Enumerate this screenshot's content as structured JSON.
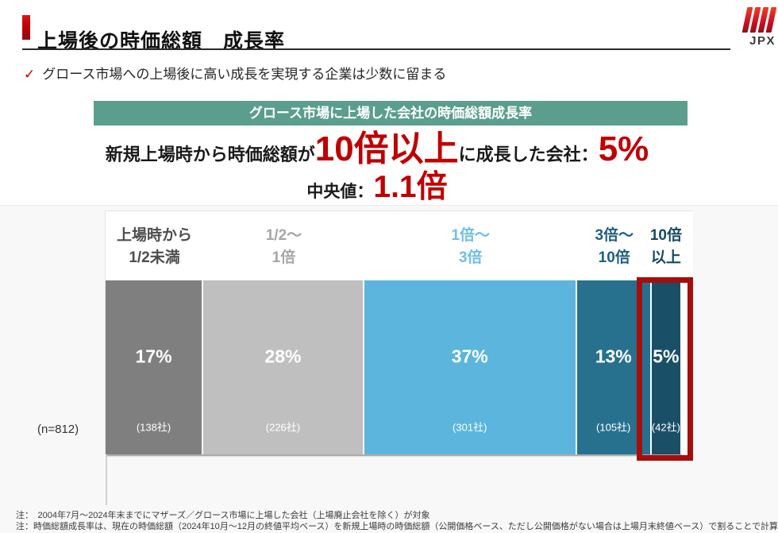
{
  "header": {
    "title": "上場後の時価総額　成長率",
    "logo_text": "JPX",
    "bullet": "グロース市場への上場後に高い成長を実現する企業は少数に留まる"
  },
  "summary": {
    "box_title": "グロース市場に上場した会社の時価総額成長率",
    "box_color": "#5B9E8D",
    "accent_red": "#C00000",
    "stmt_prefix": "新規上場時から時価総額が",
    "stmt_highlight": "10倍以上",
    "stmt_middle": "に成長した会社：",
    "stmt_value": "5%",
    "median_label": "中央値：",
    "median_value": "1.1倍"
  },
  "chart_data": {
    "type": "bar",
    "orientation": "horizontal-stacked",
    "title": "グロース市場に上場した会社の時価総額成長率",
    "n_label": "(n=812)",
    "n_total": 812,
    "unit": "% of companies",
    "categories": [
      "上場時から1/2未満",
      "1/2～1倍",
      "1倍～3倍",
      "3倍～10倍",
      "10倍以上"
    ],
    "values": [
      17,
      28,
      37,
      13,
      5
    ],
    "counts": [
      138,
      226,
      301,
      105,
      42
    ],
    "highlight_color": "#A60E0E",
    "segments": [
      {
        "label_line1": "上場時から",
        "label_line2": "1/2未満",
        "pct": 17,
        "pct_label": "17%",
        "count": 138,
        "count_label": "(138社)",
        "color": "#7F7F7F",
        "label_color": "#4D4D4D",
        "highlighted": false
      },
      {
        "label_line1": "1/2～",
        "label_line2": "1倍",
        "pct": 28,
        "pct_label": "28%",
        "count": 226,
        "count_label": "(226社)",
        "color": "#BFBFBF",
        "label_color": "#A6A6A6",
        "highlighted": false
      },
      {
        "label_line1": "1倍～",
        "label_line2": "3倍",
        "pct": 37,
        "pct_label": "37%",
        "count": 301,
        "count_label": "(301社)",
        "color": "#5BB5DC",
        "label_color": "#6FBEE3",
        "highlighted": false
      },
      {
        "label_line1": "3倍～",
        "label_line2": "10倍",
        "pct": 13,
        "pct_label": "13%",
        "count": 105,
        "count_label": "(105社)",
        "color": "#27718F",
        "label_color": "#1E5F7E",
        "highlighted": false
      },
      {
        "label_line1": "10倍",
        "label_line2": "以上",
        "pct": 5,
        "pct_label": "5%",
        "count": 42,
        "count_label": "(42社)",
        "color": "#1A4F68",
        "label_color": "#17485E",
        "highlighted": true
      }
    ]
  },
  "footnotes": [
    "注：　2004年7月～2024年末までにマザーズ／グロース市場に上場した会社（上場廃止会社を除く）が対象",
    "注：時価総額成長率は、現在の時価総額（2024年10月～12月の終値平均ベース）を新規上場時の時価総額（公開価格ベース、ただし公開価格がない場合は上場月末終値ベース）で割ることで計算"
  ]
}
